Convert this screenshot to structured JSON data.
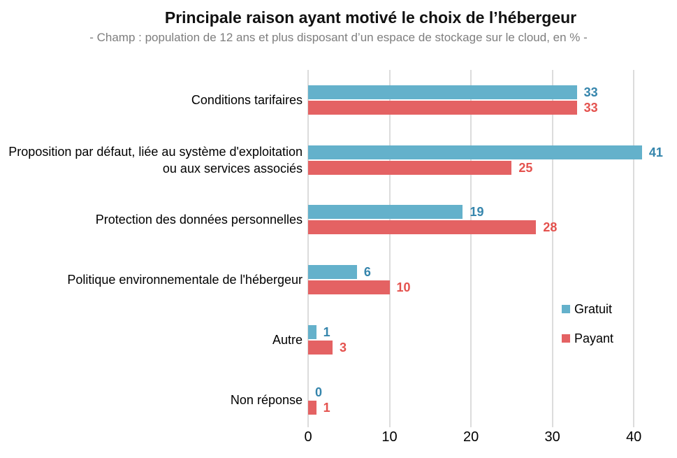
{
  "chart_data": {
    "type": "bar",
    "orientation": "horizontal",
    "title": "Principale raison ayant motivé le choix de l’hébergeur",
    "subtitle": "- Champ : population de 12 ans et plus disposant d’un espace de stockage sur le cloud, en % -",
    "unit": "%",
    "categories": [
      "Conditions tarifaires",
      "Proposition par défaut, liée au système d'exploitation ou aux services associés",
      "Protection des données personnelles",
      "Politique environnementale de l'hébergeur",
      "Autre",
      "Non réponse"
    ],
    "series": [
      {
        "name": "Gratuit",
        "color": "#64B1CB",
        "label_color": "#3585AC",
        "values": [
          33,
          41,
          19,
          6,
          1,
          0
        ]
      },
      {
        "name": "Payant",
        "color": "#E46263",
        "label_color": "#E4524E",
        "values": [
          33,
          25,
          28,
          10,
          3,
          1
        ]
      }
    ],
    "x_ticks": [
      0,
      10,
      20,
      30,
      40
    ],
    "xlim": [
      0,
      45.3
    ],
    "grid": true,
    "gridline_color": "#DCDCDC",
    "legend_position": "right-middle"
  }
}
